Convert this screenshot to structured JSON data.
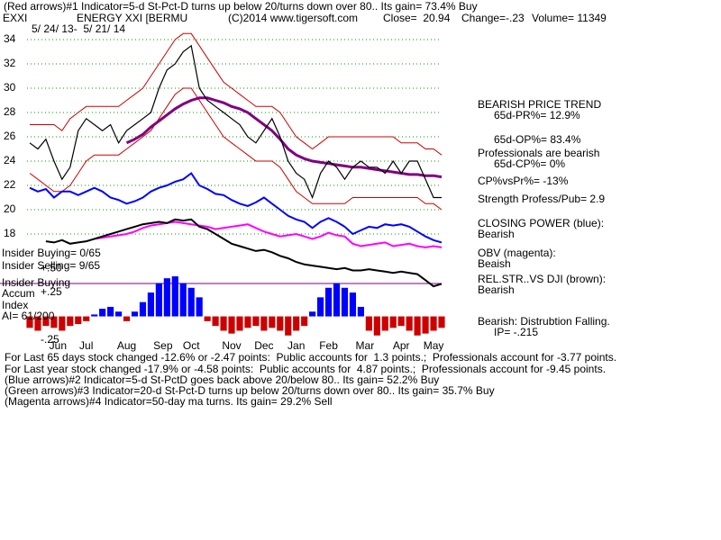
{
  "header": {
    "line1": "(Red arrows)#1 Indicator=5-d St-Pct-D turns up below 20/turns down over 80.. Its gain= 73.4% Buy",
    "symbol": "EXXI",
    "name": "ENERGY XXI [BERMU",
    "copyright": "(C)2014 www.tigersoft.com",
    "close": "Close=  20.94",
    "change": "Change=-.23",
    "volume": "Volume= 11349",
    "dates": "5/ 24/ 13-  5/ 21/ 14"
  },
  "left_labels": [
    "Insider Buying= 0/65",
    "Insider Selling= 9/65",
    "Insider Buying",
    "Accum",
    "Index",
    "AI= 61/200"
  ],
  "side_notes": [
    "BEARISH PRICE TREND",
    "65d-PR%= 12.9%",
    "65d-OP%= 83.4%",
    "Professionals are bearish",
    "65d-CP%= 0%",
    "CP%vsPr%= -13%",
    "Strength Profess/Pub= 2.9",
    "CLOSING POWER (blue):",
    "Bearish",
    "OBV (magenta):",
    "Beaish",
    "REL.STR..VS DJI (brown):",
    "Bearish",
    "Bearish: Distrubtion Falling.",
    "IP= -.215"
  ],
  "footer": [
    "For Last 65 days stock changed -12.6% or -2.47 points:  Public accounts for  1.3 points.;  Professionals account for -3.77 points.",
    "For Last year stock changed -17.9% or -4.58 points:  Public accounts for  4.87 points.;  Professionals account for -9.45 points.",
    "(Blue arrows)#2 Indicator=5-d St-PctD goes back above 20/below 80.. Its gain= 52.2% Buy",
    "(Green arrows)#3 Indicator=20-d St-Pct-D turns up below 20/turns down over 80.. Its gain= 35.7% Buy",
    "(Magenta arrows)#4 Indicator=50-day ma turns. Its gain= 29.2% Sell"
  ],
  "chart_data": {
    "type": "line",
    "x": [
      0,
      1,
      2,
      3,
      4,
      5,
      6,
      7,
      8,
      9,
      10,
      11,
      12,
      13,
      14,
      15,
      16,
      17,
      18,
      19,
      20,
      21,
      22,
      23,
      24,
      25,
      26,
      27,
      28,
      29,
      30,
      31,
      32,
      33,
      34,
      35,
      36,
      37,
      38,
      39,
      40,
      41,
      42,
      43,
      44,
      45,
      46,
      47,
      48,
      49,
      50,
      51
    ],
    "xlim": [
      0,
      51
    ],
    "xticks": [
      {
        "value": 3.5,
        "label": "Jun"
      },
      {
        "value": 7,
        "label": "Jul"
      },
      {
        "value": 12,
        "label": "Aug"
      },
      {
        "value": 16.5,
        "label": "Sep"
      },
      {
        "value": 20,
        "label": "Oct"
      },
      {
        "value": 25,
        "label": "Nov"
      },
      {
        "value": 29,
        "label": "Dec"
      },
      {
        "value": 33,
        "label": "Jan"
      },
      {
        "value": 37,
        "label": "Feb"
      },
      {
        "value": 41.5,
        "label": "Mar"
      },
      {
        "value": 46,
        "label": "Apr"
      },
      {
        "value": 50,
        "label": "May"
      }
    ],
    "ylim": [
      8,
      35
    ],
    "yticks": [
      18,
      20,
      22,
      24,
      26,
      28,
      30,
      32,
      34
    ],
    "grid": true,
    "y2lim": [
      -0.41,
      3.03
    ],
    "y2ticks": [
      {
        "value": 0.5,
        "label": "+.50"
      },
      {
        "value": 0.25,
        "label": "+.25"
      },
      {
        "value": -0.25,
        "label": "-.25"
      }
    ],
    "series": [
      {
        "color": "#cc0000",
        "values": [
          27,
          27,
          27,
          27,
          26.5,
          27.5,
          28,
          28.5,
          28.5,
          28.5,
          28.5,
          28.5,
          29,
          29.5,
          30,
          31,
          32,
          33,
          34,
          34.5,
          34.5,
          33.5,
          32.5,
          31.5,
          30.5,
          30,
          29.5,
          29,
          28.5,
          28.5,
          28.5,
          28,
          27,
          26,
          25.5,
          25,
          25.5,
          26,
          26,
          26,
          26,
          26,
          26,
          26,
          26,
          26,
          25.5,
          25.5,
          25.5,
          25,
          25,
          24.5
        ]
      },
      {
        "color": "#cc0000",
        "values": [
          23,
          22.5,
          22,
          21.5,
          21.5,
          22,
          23,
          24,
          24.5,
          24.5,
          24.5,
          24.5,
          25,
          25.5,
          26,
          26.5,
          27.5,
          28.5,
          29.5,
          30,
          30,
          29,
          28,
          27,
          26,
          25.5,
          25,
          24.5,
          24,
          24,
          24,
          23.5,
          22.5,
          21.5,
          21,
          20.5,
          20.5,
          20.5,
          20.5,
          20.5,
          21,
          21,
          21,
          21,
          21,
          21,
          21,
          21,
          21,
          20.5,
          20.5,
          20
        ]
      },
      {
        "color": "#800080",
        "values": [
          null,
          null,
          null,
          null,
          null,
          null,
          null,
          null,
          null,
          null,
          null,
          null,
          25.5,
          25.8,
          26.2,
          26.8,
          27.3,
          27.8,
          28.3,
          28.7,
          29,
          29.2,
          29.2,
          29,
          28.8,
          28.5,
          28.3,
          28,
          27.5,
          27,
          26.5,
          25.8,
          25,
          24.5,
          24.2,
          24,
          23.9,
          23.8,
          23.7,
          23.6,
          23.5,
          23.5,
          23.4,
          23.3,
          23.2,
          23.1,
          23,
          22.9,
          22.9,
          22.8,
          22.8,
          22.7
        ]
      },
      {
        "color": "#000000",
        "values": [
          25.5,
          25,
          25.8,
          24,
          22.5,
          23.5,
          26.5,
          27.5,
          27,
          26.5,
          27,
          25.5,
          26.5,
          27,
          27.5,
          28,
          30,
          31.5,
          32,
          33,
          33.5,
          30,
          29,
          28.5,
          28,
          27.5,
          27,
          26,
          25.5,
          26.5,
          27.5,
          26,
          24,
          23,
          22.5,
          21,
          23,
          24,
          23.5,
          22.5,
          23.5,
          24,
          23.5,
          23.5,
          23,
          24,
          23,
          24,
          24,
          22.5,
          21,
          21
        ]
      },
      {
        "color": "#0000ff",
        "values": [
          21.8,
          21.5,
          21.7,
          21,
          21.5,
          21.5,
          21.2,
          21.5,
          21.8,
          21.5,
          21,
          20.8,
          20.5,
          20.7,
          21,
          21.5,
          21.8,
          22,
          22.3,
          22.5,
          23,
          22,
          21.7,
          21.3,
          21.2,
          20.8,
          20.5,
          20.3,
          20.6,
          21,
          20.5,
          20,
          19.5,
          19.2,
          19,
          18.5,
          19,
          19.3,
          19,
          18.6,
          18,
          18.3,
          18.6,
          18.5,
          18.8,
          18.7,
          18.8,
          18.6,
          18.2,
          17.8,
          17.5,
          17.3
        ]
      },
      {
        "color": "#ff00ff",
        "values": [
          null,
          null,
          null,
          null,
          null,
          null,
          null,
          null,
          17.6,
          17.7,
          17.8,
          17.9,
          18,
          18.2,
          18.5,
          18.7,
          18.8,
          18.9,
          19,
          18.9,
          18.8,
          18.7,
          18.6,
          18.4,
          18.5,
          18.6,
          18.7,
          18.8,
          18.5,
          18.2,
          18,
          17.8,
          17.9,
          18,
          17.8,
          17.6,
          17.8,
          18.1,
          17.9,
          17.8,
          17.2,
          17,
          17.1,
          17.2,
          17.3,
          17,
          17.1,
          17.2,
          17,
          16.9,
          17,
          16.9
        ]
      },
      {
        "color": "#000000",
        "values": [
          null,
          null,
          17.4,
          17.3,
          17.5,
          17.2,
          17.3,
          17.4,
          17.6,
          17.8,
          18,
          18.2,
          18.4,
          18.6,
          18.8,
          18.9,
          19,
          18.9,
          19.2,
          19.1,
          19.2,
          18.6,
          18.4,
          18,
          17.6,
          17.2,
          17,
          16.8,
          16.6,
          16.7,
          16.5,
          16.2,
          16,
          15.7,
          15.5,
          15.4,
          15.3,
          15.2,
          15.1,
          15.2,
          15,
          15,
          15.1,
          15,
          14.9,
          14.8,
          14.9,
          14.8,
          14.7,
          14.2,
          13.7,
          13.9
        ]
      },
      {
        "type": "bar",
        "axis": "y2",
        "color": "#0000ff",
        "neg_color": "#cc0000",
        "values": [
          -0.12,
          -0.15,
          -0.1,
          -0.12,
          -0.15,
          -0.1,
          -0.08,
          -0.05,
          0.02,
          0.08,
          0.1,
          0.05,
          -0.05,
          0.05,
          0.15,
          0.25,
          0.35,
          0.4,
          0.42,
          0.35,
          0.3,
          0.2,
          -0.05,
          -0.1,
          -0.15,
          -0.18,
          -0.15,
          -0.12,
          -0.1,
          -0.15,
          -0.12,
          -0.15,
          -0.2,
          -0.15,
          -0.1,
          0.05,
          0.2,
          0.3,
          0.35,
          0.3,
          0.25,
          0.1,
          -0.15,
          -0.2,
          -0.15,
          -0.12,
          -0.1,
          -0.15,
          -0.2,
          -0.18,
          -0.15,
          -0.12
        ]
      }
    ]
  }
}
